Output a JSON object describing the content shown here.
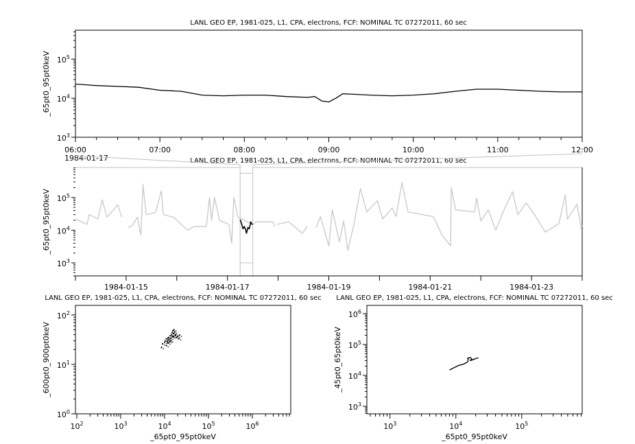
{
  "chart_data": [
    {
      "type": "line",
      "title": "LANL GEO EP, 1981-025, L1, CPA, electrons, FCF: NOMINAL TC 07272011, 60 sec",
      "xlabel": "",
      "ylabel": "_65pt0_95pt0keV",
      "yscale": "log",
      "ylim": [
        1000,
        550000
      ],
      "yticks": [
        1000,
        10000,
        100000
      ],
      "xlim": [
        "1984-01-17T06:00",
        "1984-01-17T12:00"
      ],
      "xticks": [
        "06:00",
        "07:00",
        "08:00",
        "09:00",
        "10:00",
        "11:00",
        "12:00"
      ],
      "xtick_date": "1984-01-17",
      "line_color": "#000000",
      "x": [
        "1984-01-17T06:00",
        "1984-01-17T06:15",
        "1984-01-17T06:30",
        "1984-01-17T06:45",
        "1984-01-17T07:00",
        "1984-01-17T07:15",
        "1984-01-17T07:30",
        "1984-01-17T07:45",
        "1984-01-17T08:00",
        "1984-01-17T08:15",
        "1984-01-17T08:30",
        "1984-01-17T08:45",
        "1984-01-17T08:50",
        "1984-01-17T08:55",
        "1984-01-17T09:00",
        "1984-01-17T09:05",
        "1984-01-17T09:10",
        "1984-01-17T09:30",
        "1984-01-17T09:45",
        "1984-01-17T10:00",
        "1984-01-17T10:15",
        "1984-01-17T10:30",
        "1984-01-17T10:45",
        "1984-01-17T11:00",
        "1984-01-17T11:15",
        "1984-01-17T11:30",
        "1984-01-17T11:45",
        "1984-01-17T12:00"
      ],
      "y": [
        23000,
        21000,
        20000,
        19000,
        16000,
        15000,
        12000,
        11500,
        12000,
        12000,
        11000,
        10500,
        11000,
        8500,
        8000,
        10000,
        13000,
        12000,
        11500,
        12000,
        13000,
        15000,
        17000,
        17000,
        16000,
        15000,
        14500,
        14500
      ]
    },
    {
      "type": "line",
      "title": "LANL GEO EP, 1981-025, L1, CPA, electrons, FCF: NOMINAL TC 07272011, 60 sec",
      "xlabel": "",
      "ylabel": "_65pt0_95pt0keV",
      "yscale": "log",
      "ylim": [
        400,
        830000
      ],
      "yticks": [
        1000,
        10000,
        100000
      ],
      "xlim": [
        "1984-01-14T00:00",
        "1984-01-24T00:00"
      ],
      "xticks": [
        "1984-01-15",
        "1984-01-17",
        "1984-01-19",
        "1984-01-21",
        "1984-01-23"
      ],
      "context_color": "#c8c8c8",
      "highlight_color": "#000000",
      "highlight_range": [
        "1984-01-17T06:00",
        "1984-01-17T12:00"
      ],
      "x": [
        "1984-01-14T00:00",
        "1984-01-14T05:30",
        "1984-01-14T06:30",
        "1984-01-14T10:40",
        "1984-01-14T12:40",
        "1984-01-14T15:00",
        "1984-01-14T20:00",
        "1984-01-14T22:00",
        "1984-01-14T23:00",
        "1984-01-15T01:00",
        "1984-01-15T03:00",
        "1984-01-15T05:20",
        "1984-01-15T07:00",
        "1984-01-15T08:00",
        "1984-01-15T09:30",
        "1984-01-15T14:00",
        "1984-01-15T16:40",
        "1984-01-15T17:40",
        "1984-01-15T22:30",
        "1984-01-16T05:00",
        "1984-01-16T08:20",
        "1984-01-16T14:00",
        "1984-01-16T15:30",
        "1984-01-16T16:30",
        "1984-01-16T17:50",
        "1984-01-16T20:20",
        "1984-01-17T00:40",
        "1984-01-17T02:00",
        "1984-01-17T03:00",
        "1984-01-17T05:00",
        "1984-01-17T12:00",
        "1984-01-17T13:40",
        "1984-01-17T21:30",
        "1984-01-17T22:30",
        "1984-01-17T23:00",
        "1984-01-17T23:30",
        "1984-01-18T05:00",
        "1984-01-18T11:30",
        "1984-01-18T13:40",
        "1984-01-18T15:00",
        "1984-01-18T18:00",
        "1984-01-18T20:00",
        "1984-01-19T00:00",
        "1984-01-19T01:40",
        "1984-01-19T05:00",
        "1984-01-19T07:00",
        "1984-01-19T09:00",
        "1984-01-19T12:00",
        "1984-01-19T15:00",
        "1984-01-19T18:00",
        "1984-01-19T23:00",
        "1984-01-20T01:30",
        "1984-01-20T06:00",
        "1984-01-20T07:50",
        "1984-01-20T10:40",
        "1984-01-20T13:30",
        "1984-01-21T01:30",
        "1984-01-21T05:40",
        "1984-01-21T09:40",
        "1984-01-21T10:00",
        "1984-01-21T12:00",
        "1984-01-21T21:00",
        "1984-01-21T22:00",
        "1984-01-22T00:00",
        "1984-01-22T03:30",
        "1984-01-22T07:00",
        "1984-01-22T11:00",
        "1984-01-22T15:00",
        "1984-01-22T17:30",
        "1984-01-22T21:30",
        "1984-01-23T02:00",
        "1984-01-23T06:30",
        "1984-01-23T13:00",
        "1984-01-23T16:00",
        "1984-01-23T17:00",
        "1984-01-23T21:30",
        "1984-01-23T23:30",
        "1984-01-24T00:00"
      ],
      "y": [
        22000,
        15000,
        30000,
        22000,
        85000,
        25000,
        60000,
        25000,
        null,
        12000,
        14000,
        25000,
        7000,
        250000,
        30000,
        35000,
        160000,
        30000,
        25000,
        10000,
        13000,
        13000,
        100000,
        20000,
        100000,
        20000,
        15000,
        4000,
        100000,
        25000,
        15000,
        18000,
        18000,
        13000,
        null,
        15000,
        18000,
        8000,
        13000,
        null,
        12000,
        26000,
        3300,
        42000,
        4400,
        19000,
        2400,
        16000,
        190000,
        36000,
        80000,
        22000,
        47000,
        26000,
        290000,
        36000,
        26000,
        7000,
        3300,
        200000,
        42000,
        36000,
        96000,
        19000,
        42000,
        10000,
        42000,
        150000,
        30000,
        68000,
        26000,
        8700,
        16000,
        120000,
        22000,
        62000,
        11500,
        14000
      ],
      "highlight_x": [
        "1984-01-17T06:00",
        "1984-01-17T06:40",
        "1984-01-17T07:20",
        "1984-01-17T08:00",
        "1984-01-17T08:40",
        "1984-01-17T09:00",
        "1984-01-17T09:40",
        "1984-01-17T10:20",
        "1984-01-17T11:00",
        "1984-01-17T11:40",
        "1984-01-17T12:00"
      ],
      "highlight_y": [
        21000,
        16000,
        11000,
        13000,
        10000,
        8000,
        12000,
        11000,
        18000,
        15000,
        15000
      ]
    },
    {
      "type": "scatter",
      "title": "LANL GEO EP, 1981-025, L1, CPA, electrons, FCF: NOMINAL TC 07272011, 60 sec",
      "xlabel": "_65pt0_95pt0keV",
      "ylabel": "_600pt0_900pt0keV",
      "xscale": "log",
      "yscale": "log",
      "xlim": [
        93,
        7500000
      ],
      "ylim": [
        1,
        156
      ],
      "xticks": [
        100,
        1000,
        10000,
        100000,
        1000000
      ],
      "yticks": [
        1,
        10,
        100
      ],
      "x": [
        8500,
        9000,
        10000,
        10500,
        11000,
        11500,
        12000,
        12000,
        12500,
        13000,
        13500,
        14000,
        14500,
        15000,
        15500,
        16000,
        16000,
        17000,
        17500,
        18000,
        19000,
        20000,
        21000,
        22000,
        11000,
        13000,
        15000,
        12000,
        14000,
        16500
      ],
      "y": [
        22,
        26,
        28,
        30,
        33,
        29,
        31,
        27,
        35,
        32,
        38,
        34,
        40,
        44,
        48,
        42,
        36,
        45,
        38,
        40,
        35,
        37,
        33,
        39,
        24,
        29,
        37,
        34,
        30,
        50
      ]
    },
    {
      "type": "line",
      "title": "LANL GEO EP, 1981-025, L1, CPA, electrons, FCF: NOMINAL TC 07272011, 60 sec",
      "xlabel": "_65pt0_95pt0keV",
      "ylabel": "_45pt0_65pt0keV",
      "xscale": "log",
      "yscale": "log",
      "xlim": [
        445,
        830000
      ],
      "ylim": [
        570,
        1850000
      ],
      "xticks": [
        1000,
        10000,
        100000
      ],
      "yticks": [
        1000,
        10000,
        100000,
        1000000
      ],
      "x": [
        8000,
        9000,
        10000,
        11000,
        11500,
        12000,
        13000,
        14000,
        15000,
        15500,
        15000,
        16500,
        17500,
        16500,
        18000,
        20000,
        22000
      ],
      "y": [
        15000,
        17000,
        19000,
        21000,
        21500,
        22000,
        23000,
        25000,
        27000,
        33000,
        36000,
        38000,
        34000,
        30000,
        32000,
        35000,
        37000
      ]
    }
  ]
}
